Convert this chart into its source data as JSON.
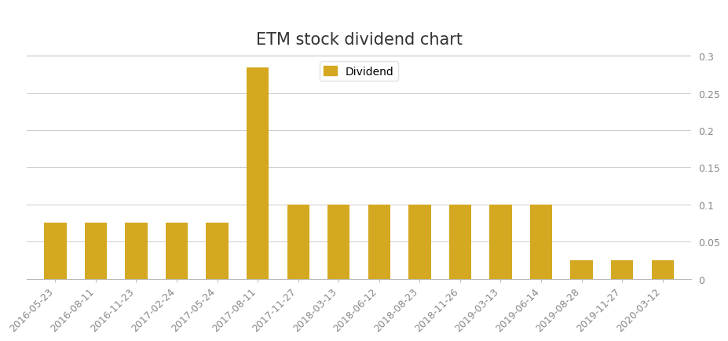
{
  "title": "ETM stock dividend chart",
  "categories": [
    "2016-05-23",
    "2016-08-11",
    "2016-11-23",
    "2017-02-24",
    "2017-05-24",
    "2017-08-11",
    "2017-11-27",
    "2018-03-13",
    "2018-06-12",
    "2018-08-23",
    "2018-11-26",
    "2019-03-13",
    "2019-06-14",
    "2019-08-28",
    "2019-11-27",
    "2020-03-12"
  ],
  "values": [
    0.075,
    0.075,
    0.075,
    0.075,
    0.075,
    0.285,
    0.1,
    0.1,
    0.1,
    0.1,
    0.1,
    0.1,
    0.1,
    0.025,
    0.025,
    0.025
  ],
  "bar_color": "#D4A820",
  "legend_label": "Dividend",
  "ylim": [
    0,
    0.3
  ],
  "yticks": [
    0,
    0.05,
    0.1,
    0.15,
    0.2,
    0.25,
    0.3
  ],
  "ytick_labels": [
    "0",
    "0.05",
    "0.1",
    "0.15",
    "0.2",
    "0.25",
    "0.3"
  ],
  "background_color": "#ffffff",
  "grid_color": "#cccccc",
  "title_fontsize": 15,
  "tick_fontsize": 9,
  "legend_fontsize": 10,
  "bar_width": 0.55,
  "header_line_color": "#bbbbbb",
  "axis_line_color": "#bbbbbb",
  "tick_label_color": "#888888"
}
